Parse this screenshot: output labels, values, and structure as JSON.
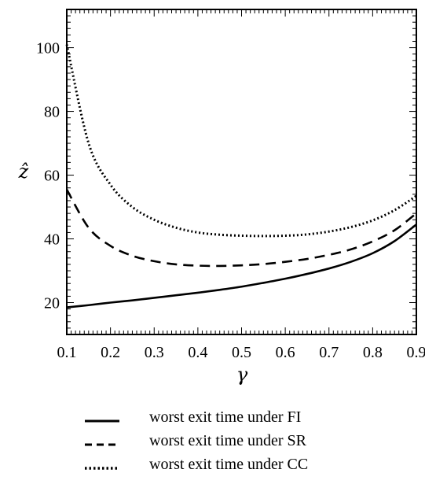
{
  "chart_data": {
    "type": "line",
    "xlabel": "γ",
    "ylabel": "ẑ",
    "xlim": [
      0.1,
      0.9
    ],
    "ylim": [
      10,
      112
    ],
    "x_ticks": [
      0.1,
      0.2,
      0.3,
      0.4,
      0.5,
      0.6,
      0.7,
      0.8,
      0.9
    ],
    "x_tick_labels": [
      "0.1",
      "0.2",
      "0.3",
      "0.4",
      "0.5",
      "0.6",
      "0.7",
      "0.8",
      "0.9"
    ],
    "y_ticks": [
      20,
      40,
      60,
      80,
      100
    ],
    "y_tick_labels": [
      "20",
      "40",
      "60",
      "80",
      "100"
    ],
    "grid": false,
    "legend_position": "bottom",
    "x": [
      0.1,
      0.15,
      0.2,
      0.25,
      0.3,
      0.35,
      0.4,
      0.45,
      0.5,
      0.55,
      0.6,
      0.65,
      0.7,
      0.75,
      0.8,
      0.85,
      0.9
    ],
    "series": [
      {
        "name": "worst exit time under FI",
        "style": "solid",
        "values": [
          18.5,
          19.2,
          20.0,
          20.7,
          21.5,
          22.3,
          23.1,
          24.0,
          25.0,
          26.2,
          27.5,
          29.0,
          30.7,
          32.8,
          35.5,
          39.3,
          44.5
        ]
      },
      {
        "name": "worst exit time under SR",
        "style": "dashed",
        "values": [
          55.5,
          43.5,
          37.8,
          34.7,
          33.0,
          32.0,
          31.6,
          31.5,
          31.7,
          32.1,
          32.8,
          33.7,
          35.0,
          36.7,
          39.2,
          42.7,
          48.0
        ]
      },
      {
        "name": "worst exit time under CC",
        "style": "dotted",
        "values": [
          101.0,
          70.0,
          57.0,
          50.0,
          46.0,
          43.5,
          42.0,
          41.3,
          41.0,
          40.9,
          41.0,
          41.4,
          42.3,
          43.7,
          45.8,
          49.0,
          53.5
        ]
      }
    ]
  }
}
